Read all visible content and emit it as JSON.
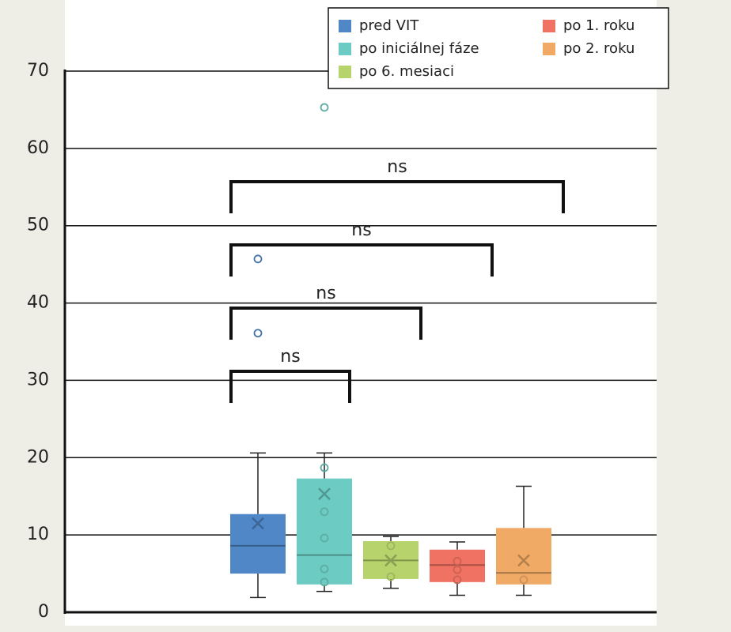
{
  "chart_data": {
    "type": "box",
    "ylim": [
      0,
      70
    ],
    "yticks": [
      0,
      10,
      20,
      30,
      40,
      50,
      60,
      70
    ],
    "grid": true,
    "legend": "top-right",
    "series": [
      {
        "name": "pred VIT",
        "color": "#4f87c7",
        "min": 1.9,
        "q1": 5.0,
        "median": 8.6,
        "q3": 12.7,
        "max": 20.6,
        "mean": 11.5,
        "points": [
          36.1,
          45.7
        ]
      },
      {
        "name": "po iniciálnej fáze",
        "color": "#6ccbc2",
        "min": 2.7,
        "q1": 3.6,
        "median": 7.4,
        "q3": 17.3,
        "max": 20.6,
        "mean": 15.3,
        "points": [
          18.7,
          13.0,
          9.6,
          5.6,
          3.9,
          65.3
        ]
      },
      {
        "name": "po 6. mesiaci",
        "color": "#b7d46c",
        "min": 3.1,
        "q1": 4.3,
        "median": 6.7,
        "q3": 9.2,
        "max": 9.8,
        "mean": 6.7,
        "points": [
          8.6,
          4.6
        ]
      },
      {
        "name": "po 1. roku",
        "color": "#f07262",
        "min": 2.2,
        "q1": 3.9,
        "median": 6.1,
        "q3": 8.1,
        "max": 9.1,
        "mean": null,
        "points": [
          6.6,
          5.5,
          4.2
        ]
      },
      {
        "name": "po 2. roku",
        "color": "#f1aa66",
        "min": 2.2,
        "q1": 3.6,
        "median": 5.1,
        "q3": 10.9,
        "max": 16.3,
        "mean": 6.7,
        "points": [
          4.2
        ]
      }
    ],
    "annotations": [
      {
        "text": "ns",
        "groups": [
          "pred VIT",
          "po iniciálnej fáze"
        ]
      },
      {
        "text": "ns",
        "groups": [
          "pred VIT",
          "po 6. mesiaci"
        ]
      },
      {
        "text": "ns",
        "groups": [
          "pred VIT",
          "po 1. roku"
        ]
      },
      {
        "text": "ns",
        "groups": [
          "pred VIT",
          "po 2. roku"
        ]
      }
    ]
  }
}
